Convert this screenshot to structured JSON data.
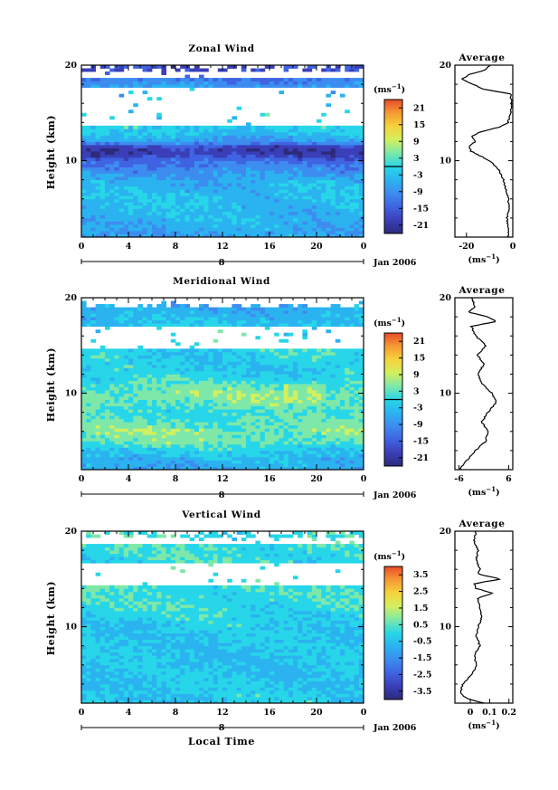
{
  "figure": {
    "x_axis_label": "Local Time",
    "date_label": "Jan 2006",
    "day_label": "8",
    "unit_label": "(ms",
    "unit_exp": "−1"
  },
  "colormap": [
    "#2d2a7a",
    "#3a3fb8",
    "#3f63e2",
    "#3d8cf0",
    "#2bb3f0",
    "#27d6e8",
    "#7ee8a8",
    "#d2ef5e",
    "#f6d33c",
    "#f59a33",
    "#ea4b2a"
  ],
  "chart_data": [
    {
      "type": "heatmap",
      "title": "Zonal Wind",
      "xlabel": "",
      "ylabel": "Height (km)",
      "x_ticks": [
        "0",
        "4",
        "8",
        "12",
        "16",
        "20",
        "0"
      ],
      "xlim": [
        0,
        24
      ],
      "ylim": [
        2,
        20
      ],
      "y_ticks": [
        "10",
        "20"
      ],
      "colorbar": {
        "unit": "(ms−1)",
        "ticks": [
          "21",
          "15",
          "9",
          "3",
          "-3",
          "-9",
          "-15",
          "-21"
        ],
        "range": [
          -24,
          24
        ],
        "zero_line": 0
      },
      "field_profile": [
        {
          "h": 2,
          "v": -7
        },
        {
          "h": 3,
          "v": -6
        },
        {
          "h": 4,
          "v": -4
        },
        {
          "h": 5,
          "v": -4
        },
        {
          "h": 6,
          "v": -3
        },
        {
          "h": 7,
          "v": -4
        },
        {
          "h": 8,
          "v": -6
        },
        {
          "h": 9,
          "v": -9
        },
        {
          "h": 10,
          "v": -13
        },
        {
          "h": 10.5,
          "v": -18
        },
        {
          "h": 11,
          "v": -21
        },
        {
          "h": 11.5,
          "v": -18
        },
        {
          "h": 12,
          "v": -8
        },
        {
          "h": 13,
          "v": -2
        },
        {
          "h": 14,
          "v": -1
        },
        {
          "h": 15,
          "v": -1
        },
        {
          "h": 16,
          "v": -2
        },
        {
          "h": 17,
          "v": -4
        },
        {
          "h": 18,
          "v": -8
        },
        {
          "h": 19,
          "v": -16
        },
        {
          "h": 20,
          "v": -19
        }
      ],
      "profile": {
        "title": "Average",
        "xlabel": "(ms−1)",
        "x_ticks": [
          {
            "v": -20,
            "label": "-20"
          },
          {
            "v": 0,
            "label": "0"
          }
        ],
        "xlim": [
          -25,
          0
        ],
        "ylim": [
          2,
          20
        ],
        "y_ticks": [
          "10",
          "20"
        ],
        "points": [
          {
            "h": 2,
            "v": -2
          },
          {
            "h": 3,
            "v": -2
          },
          {
            "h": 4,
            "v": -2.5
          },
          {
            "h": 5,
            "v": -1.5
          },
          {
            "h": 6,
            "v": -2
          },
          {
            "h": 7,
            "v": -3
          },
          {
            "h": 8,
            "v": -4
          },
          {
            "h": 9,
            "v": -6
          },
          {
            "h": 10,
            "v": -10
          },
          {
            "h": 10.5,
            "v": -14
          },
          {
            "h": 11,
            "v": -18
          },
          {
            "h": 11.5,
            "v": -19
          },
          {
            "h": 12,
            "v": -16
          },
          {
            "h": 12.5,
            "v": -18
          },
          {
            "h": 13,
            "v": -14
          },
          {
            "h": 13.5,
            "v": -6
          },
          {
            "h": 14,
            "v": -2
          },
          {
            "h": 15,
            "v": -1
          },
          {
            "h": 16,
            "v": -0.5
          },
          {
            "h": 17,
            "v": -1
          },
          {
            "h": 17.5,
            "v": -13
          },
          {
            "h": 18,
            "v": -17
          },
          {
            "h": 18.5,
            "v": -22
          },
          {
            "h": 19,
            "v": -19
          },
          {
            "h": 19.5,
            "v": -12
          },
          {
            "h": 20,
            "v": -10
          }
        ]
      }
    },
    {
      "type": "heatmap",
      "title": "Meridional Wind",
      "xlabel": "",
      "ylabel": "Height (km)",
      "x_ticks": [
        "0",
        "4",
        "8",
        "12",
        "16",
        "20",
        "0"
      ],
      "xlim": [
        0,
        24
      ],
      "ylim": [
        2,
        20
      ],
      "y_ticks": [
        "10",
        "20"
      ],
      "colorbar": {
        "unit": "(ms−1)",
        "ticks": [
          "21",
          "15",
          "9",
          "3",
          "-3",
          "-9",
          "-15",
          "-21"
        ],
        "range": [
          -24,
          24
        ],
        "zero_line": 0
      },
      "field_profile": [
        {
          "h": 2,
          "v": -6
        },
        {
          "h": 3,
          "v": -5
        },
        {
          "h": 4,
          "v": -1
        },
        {
          "h": 5,
          "v": 4
        },
        {
          "h": 6,
          "v": 5
        },
        {
          "h": 7,
          "v": 3
        },
        {
          "h": 8,
          "v": 1
        },
        {
          "h": 9,
          "v": 4
        },
        {
          "h": 10,
          "v": 5
        },
        {
          "h": 11,
          "v": 2
        },
        {
          "h": 12,
          "v": -1
        },
        {
          "h": 13,
          "v": -2
        },
        {
          "h": 14,
          "v": -1
        },
        {
          "h": 15,
          "v": 0
        },
        {
          "h": 16,
          "v": -1
        },
        {
          "h": 17,
          "v": -2
        },
        {
          "h": 18,
          "v": -4
        },
        {
          "h": 19,
          "v": -6
        },
        {
          "h": 20,
          "v": -7
        }
      ],
      "profile": {
        "title": "Average",
        "xlabel": "(ms−1)",
        "x_ticks": [
          {
            "v": -6,
            "label": "-6"
          },
          {
            "v": 6,
            "label": "6"
          }
        ],
        "xlim": [
          -7,
          7
        ],
        "ylim": [
          2,
          20
        ],
        "y_ticks": [
          "10",
          "20"
        ],
        "points": [
          {
            "h": 2,
            "v": -6
          },
          {
            "h": 3,
            "v": -4
          },
          {
            "h": 4,
            "v": -2
          },
          {
            "h": 5,
            "v": 0.5
          },
          {
            "h": 6,
            "v": 1
          },
          {
            "h": 7,
            "v": -0.5
          },
          {
            "h": 8,
            "v": 1
          },
          {
            "h": 9,
            "v": 3
          },
          {
            "h": 10,
            "v": 2
          },
          {
            "h": 11,
            "v": -0.5
          },
          {
            "h": 12,
            "v": -1.5
          },
          {
            "h": 13,
            "v": 0
          },
          {
            "h": 14,
            "v": -1.5
          },
          {
            "h": 15,
            "v": 0.5
          },
          {
            "h": 16,
            "v": -2
          },
          {
            "h": 17,
            "v": -3
          },
          {
            "h": 17.5,
            "v": 3
          },
          {
            "h": 18,
            "v": 1
          },
          {
            "h": 18.5,
            "v": -4
          },
          {
            "h": 19,
            "v": -2
          },
          {
            "h": 20,
            "v": -3
          }
        ]
      }
    },
    {
      "type": "heatmap",
      "title": "Vertical Wind",
      "xlabel": "Local Time",
      "ylabel": "Height (km)",
      "x_ticks": [
        "0",
        "4",
        "8",
        "12",
        "16",
        "20",
        "0"
      ],
      "xlim": [
        0,
        24
      ],
      "ylim": [
        2,
        20
      ],
      "y_ticks": [
        "10",
        "20"
      ],
      "colorbar": {
        "unit": "(ms−1)",
        "ticks": [
          "3.5",
          "2.5",
          "1.5",
          "0.5",
          "-0.5",
          "-1.5",
          "-2.5",
          "-3.5"
        ],
        "range": [
          -4,
          4
        ],
        "zero_line": null
      },
      "field_profile": [
        {
          "h": 2,
          "v": -0.2
        },
        {
          "h": 4,
          "v": -0.4
        },
        {
          "h": 6,
          "v": -0.5
        },
        {
          "h": 8,
          "v": -0.4
        },
        {
          "h": 10,
          "v": -0.3
        },
        {
          "h": 12,
          "v": 0.1
        },
        {
          "h": 14,
          "v": 0.2
        },
        {
          "h": 16,
          "v": 0.1
        },
        {
          "h": 18,
          "v": 0.2
        },
        {
          "h": 20,
          "v": 0.1
        }
      ],
      "profile": {
        "title": "Average",
        "xlabel": "(ms−1)",
        "x_ticks": [
          {
            "v": 0,
            "label": "0"
          },
          {
            "v": 0.1,
            "label": "0.1"
          },
          {
            "v": 0.2,
            "label": "0.2"
          }
        ],
        "xlim": [
          -0.08,
          0.22
        ],
        "ylim": [
          2,
          20
        ],
        "y_ticks": [
          "10",
          "20"
        ],
        "points": [
          {
            "h": 2,
            "v": 0.07
          },
          {
            "h": 2.5,
            "v": -0.02
          },
          {
            "h": 3,
            "v": -0.05
          },
          {
            "h": 4,
            "v": -0.04
          },
          {
            "h": 5,
            "v": 0.01
          },
          {
            "h": 6,
            "v": 0.03
          },
          {
            "h": 7,
            "v": 0.02
          },
          {
            "h": 8,
            "v": 0.05
          },
          {
            "h": 9,
            "v": 0.03
          },
          {
            "h": 10,
            "v": 0.04
          },
          {
            "h": 11,
            "v": 0.06
          },
          {
            "h": 12,
            "v": 0.05
          },
          {
            "h": 13,
            "v": 0.04
          },
          {
            "h": 13.5,
            "v": 0.12
          },
          {
            "h": 14,
            "v": 0.03
          },
          {
            "h": 14.5,
            "v": 0.02
          },
          {
            "h": 15,
            "v": 0.16
          },
          {
            "h": 15.5,
            "v": 0.04
          },
          {
            "h": 16,
            "v": 0.05
          },
          {
            "h": 17,
            "v": 0.03
          },
          {
            "h": 18,
            "v": 0.04
          },
          {
            "h": 19,
            "v": 0.02
          },
          {
            "h": 20,
            "v": 0.03
          }
        ]
      }
    }
  ]
}
